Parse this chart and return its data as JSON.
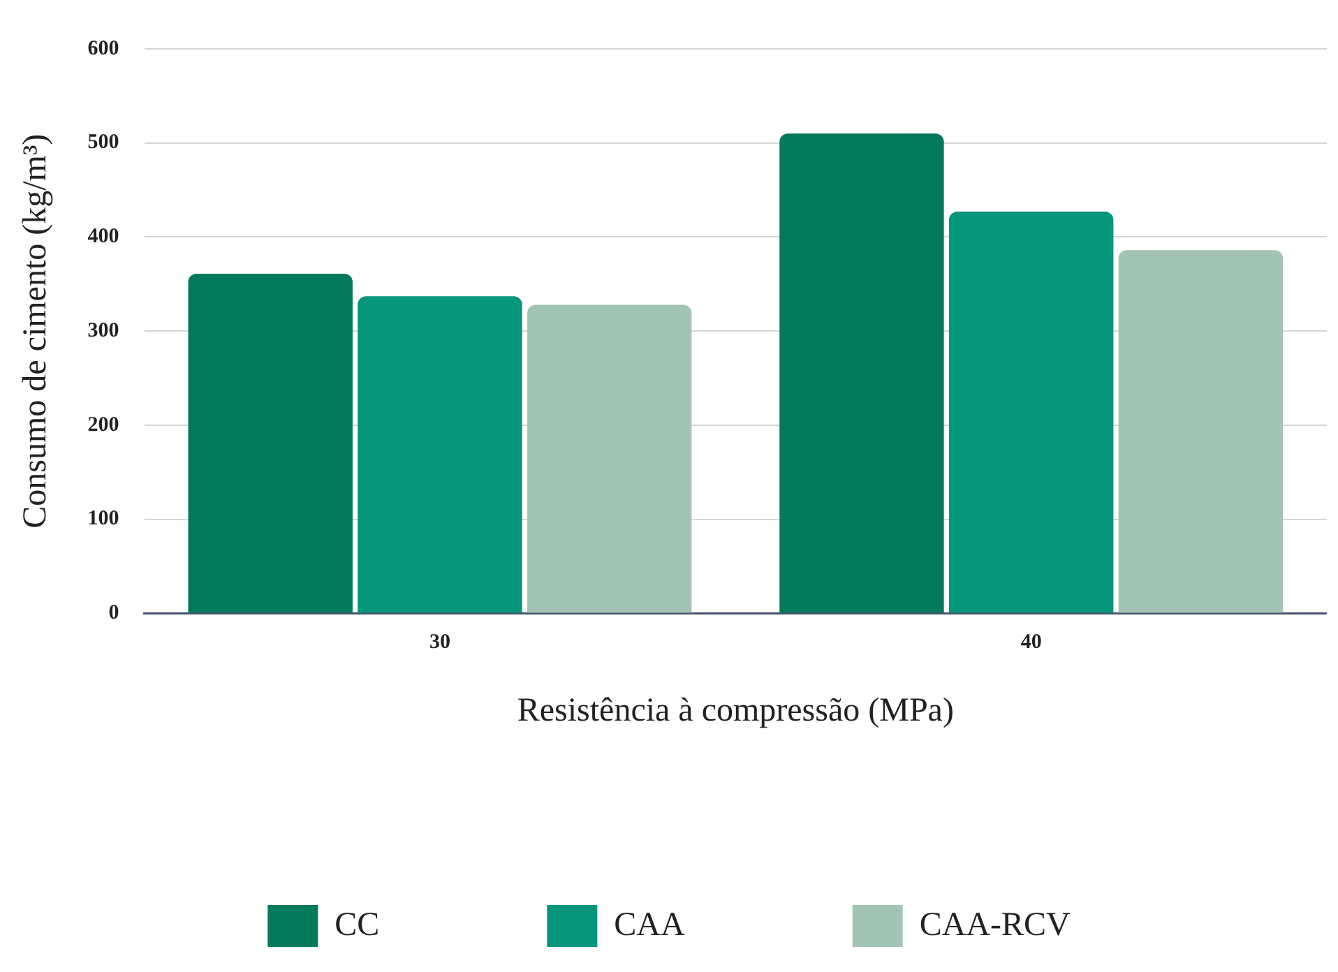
{
  "chart_data": {
    "type": "bar",
    "xlabel": "Resistência à compressão (MPa)",
    "ylabel": "Consumo de cimento (kg/m³)",
    "categories": [
      "30",
      "40"
    ],
    "series": [
      {
        "name": "CC",
        "color": "#047a5c",
        "values": [
          361,
          510
        ]
      },
      {
        "name": "CAA",
        "color": "#06967a",
        "values": [
          337,
          427
        ]
      },
      {
        "name": "CAA-RCV",
        "color": "#a2c4b4",
        "values": [
          328,
          386
        ]
      }
    ],
    "ylim": [
      0,
      600
    ],
    "yticks": [
      0,
      100,
      200,
      300,
      400,
      500,
      600
    ],
    "grid": "y",
    "legend": "bottom"
  }
}
